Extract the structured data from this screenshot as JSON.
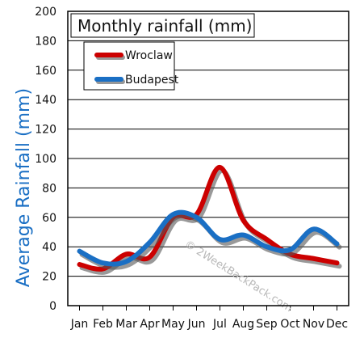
{
  "chart_data": {
    "type": "line",
    "title": "Monthly rainfall (mm)",
    "xlabel": "",
    "ylabel": "Average Rainfall (mm)",
    "categories": [
      "Jan",
      "Feb",
      "Mar",
      "Apr",
      "May",
      "Jun",
      "Jul",
      "Aug",
      "Sep",
      "Oct",
      "Nov",
      "Dec"
    ],
    "ylim": [
      0,
      200
    ],
    "yticks": [
      0,
      20,
      40,
      60,
      80,
      100,
      120,
      140,
      160,
      180,
      200
    ],
    "grid": true,
    "legend_position": "top-left",
    "series": [
      {
        "name": "Wroclaw",
        "color": "#cc0000",
        "values": [
          28,
          25,
          35,
          33,
          60,
          62,
          94,
          58,
          45,
          35,
          32,
          29
        ]
      },
      {
        "name": "Budapest",
        "color": "#1a6fc4",
        "values": [
          37,
          29,
          30,
          43,
          62,
          60,
          45,
          48,
          40,
          38,
          52,
          42
        ]
      }
    ],
    "watermark": "© 2WeekBackPack.com"
  }
}
